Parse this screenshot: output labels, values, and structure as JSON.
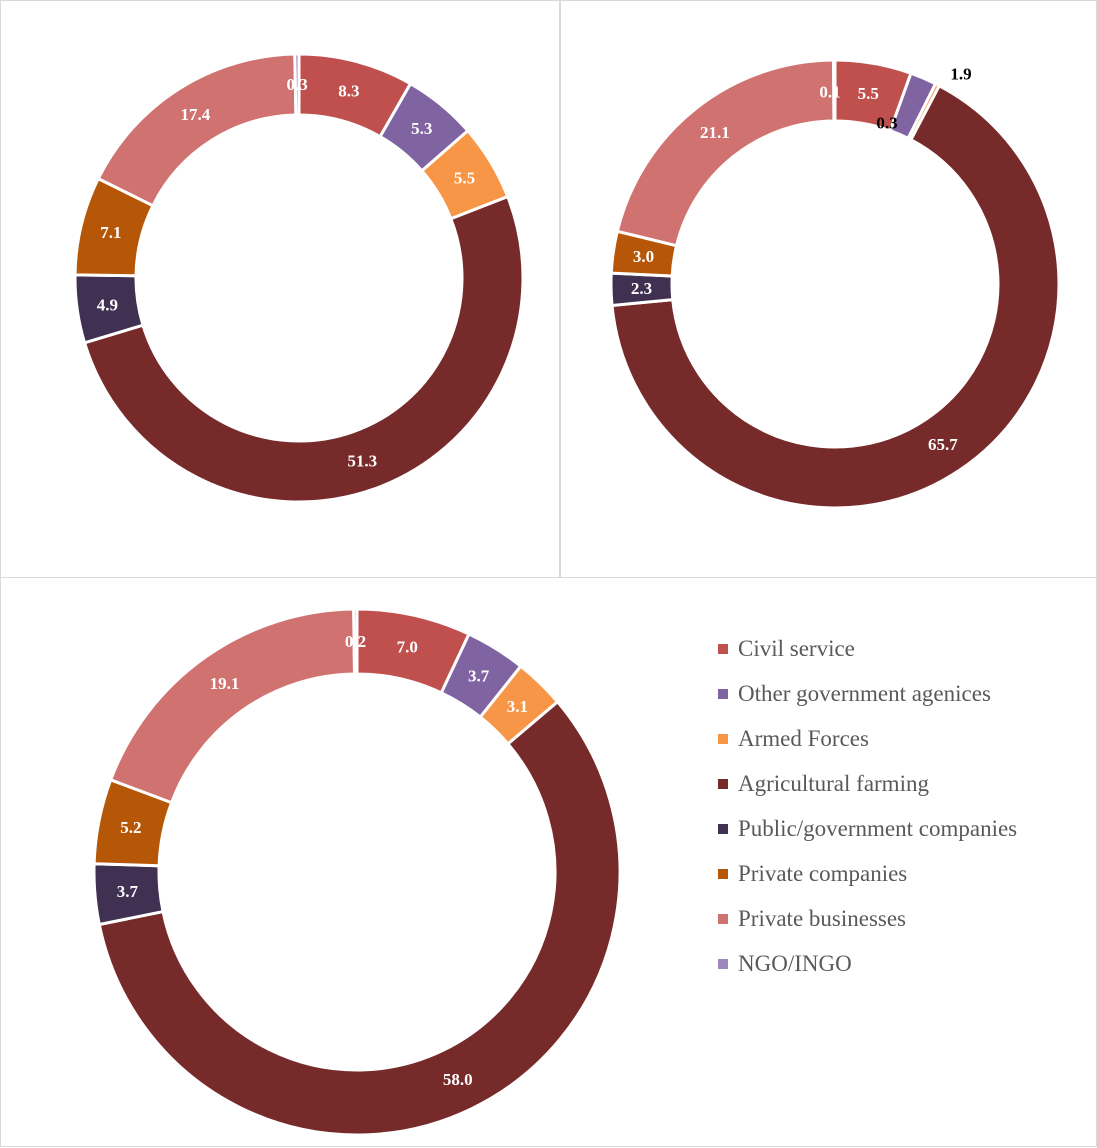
{
  "legend": [
    {
      "label": "Civil service",
      "color": "#c0504d"
    },
    {
      "label": "Other government agenices",
      "color": "#8064a2"
    },
    {
      "label": "Armed Forces",
      "color": "#f79646"
    },
    {
      "label": "Agricultural farming",
      "color": "#772a2a"
    },
    {
      "label": "Public/government companies",
      "color": "#403152"
    },
    {
      "label": "Private companies",
      "color": "#b65708"
    },
    {
      "label": "Private businesses",
      "color": "#d07370"
    },
    {
      "label": "NGO/INGO",
      "color": "#9f86be"
    }
  ],
  "chart_data": [
    {
      "type": "donut",
      "categories": [
        "Civil service",
        "Other government agenices",
        "Armed Forces",
        "Agricultural farming",
        "Public/government companies",
        "Private companies",
        "Private businesses",
        "NGO/INGO"
      ],
      "values": [
        8.3,
        5.3,
        5.5,
        51.3,
        4.9,
        7.1,
        17.4,
        0.3
      ],
      "labels": [
        "8.3",
        "5.3",
        "5.5",
        "51.3",
        "4.9",
        "7.1",
        "17.4",
        "0.3"
      ]
    },
    {
      "type": "donut",
      "categories": [
        "Civil service",
        "Other government agenices",
        "Armed Forces",
        "Agricultural farming",
        "Public/government companies",
        "Private companies",
        "Private businesses",
        "NGO/INGO"
      ],
      "values": [
        5.5,
        1.9,
        0.3,
        65.7,
        2.3,
        3.0,
        21.1,
        0.1
      ],
      "labels": [
        "5.5",
        "1.9",
        "0.3",
        "65.7",
        "2.3",
        "3.0",
        "21.1",
        "0.1"
      ]
    },
    {
      "type": "donut",
      "categories": [
        "Civil service",
        "Other government agenices",
        "Armed Forces",
        "Agricultural farming",
        "Public/government companies",
        "Private companies",
        "Private businesses",
        "NGO/INGO"
      ],
      "values": [
        7.0,
        3.7,
        3.1,
        58.0,
        3.7,
        5.2,
        19.1,
        0.2
      ],
      "labels": [
        "7.0",
        "3.7",
        "3.1",
        "58.0",
        "3.7",
        "5.2",
        "19.1",
        "0.2"
      ]
    }
  ]
}
